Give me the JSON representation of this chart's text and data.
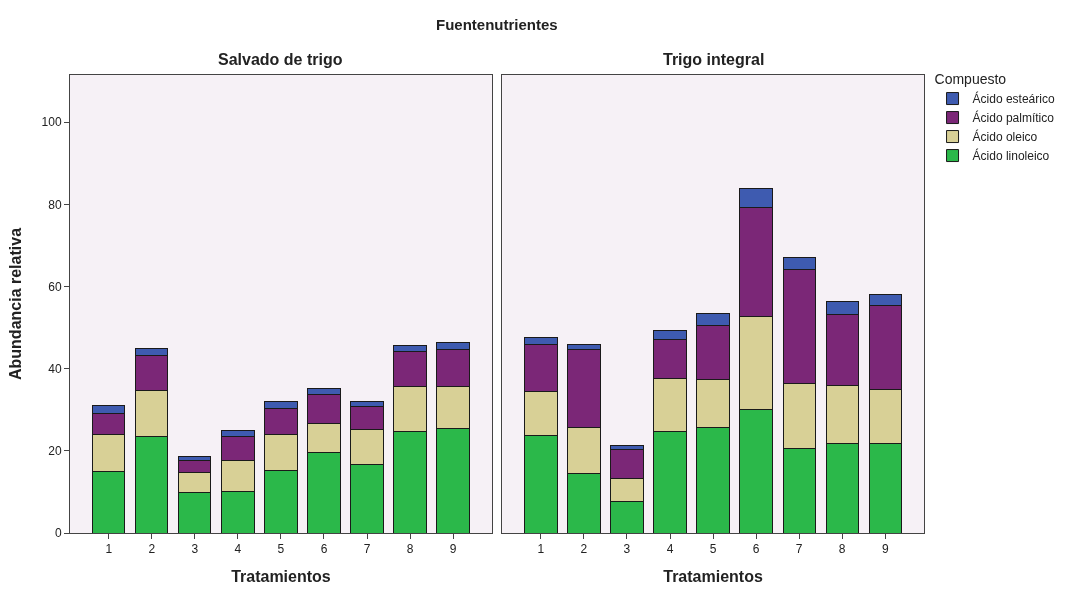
{
  "chart_data": [
    {
      "type": "bar",
      "title": "Salvado de trigo",
      "annotations": [
        "Fuentenutrientes"
      ],
      "xlabel": "Tratamientos",
      "ylabel": "Abundancia relativa",
      "legend_title": "Compuesto",
      "categories": [
        "1",
        "2",
        "3",
        "4",
        "5",
        "6",
        "7",
        "8",
        "9"
      ],
      "stacked": true,
      "ylim": [
        0,
        111.5
      ],
      "yticks": [
        0,
        20,
        40,
        60,
        80,
        100
      ],
      "grid": false,
      "legend": "top right",
      "series": [
        {
          "name": "Ácido linoleico",
          "color": "#2bb84a",
          "values": [
            14.9,
            23.6,
            9.8,
            10.1,
            15.2,
            19.6,
            16.6,
            24.8,
            25.4
          ]
        },
        {
          "name": "Ácido oleico",
          "color": "#d8d096",
          "values": [
            9.0,
            11.2,
            4.9,
            7.6,
            8.8,
            7.0,
            8.5,
            10.8,
            10.3
          ]
        },
        {
          "name": "Ácido palmítico",
          "color": "#7b2777",
          "values": [
            5.3,
            8.4,
            2.9,
            5.7,
            6.4,
            7.2,
            5.6,
            8.5,
            9.0
          ]
        },
        {
          "name": "Ácido esteárico",
          "color": "#3e5bb0",
          "values": [
            1.9,
            1.8,
            1.1,
            1.5,
            1.7,
            1.5,
            1.2,
            1.6,
            1.6
          ]
        }
      ]
    },
    {
      "type": "bar",
      "title": "Trigo integral",
      "xlabel": "Tratamientos",
      "categories": [
        "1",
        "2",
        "3",
        "4",
        "5",
        "6",
        "7",
        "8",
        "9"
      ],
      "stacked": true,
      "ylim": [
        0,
        111.5
      ],
      "yticks": [
        0,
        20,
        40,
        60,
        80,
        100
      ],
      "grid": false,
      "tick_labels": "x",
      "legend": "top right",
      "series": [
        {
          "name": "Ácido linoleico",
          "color": "#2bb84a",
          "values": [
            23.7,
            14.5,
            7.7,
            24.6,
            25.6,
            30.0,
            20.5,
            21.7,
            21.7
          ]
        },
        {
          "name": "Ácido oleico",
          "color": "#d8d096",
          "values": [
            10.8,
            11.3,
            5.5,
            12.9,
            11.8,
            22.8,
            15.8,
            14.2,
            13.3
          ]
        },
        {
          "name": "Ácido palmítico",
          "color": "#7b2777",
          "values": [
            11.4,
            18.8,
            7.2,
            9.5,
            13.2,
            26.4,
            27.8,
            17.4,
            20.3
          ]
        },
        {
          "name": "Ácido esteárico",
          "color": "#3e5bb0",
          "values": [
            1.6,
            1.2,
            1.0,
            2.3,
            2.8,
            4.6,
            2.9,
            3.0,
            2.8
          ]
        }
      ]
    }
  ]
}
